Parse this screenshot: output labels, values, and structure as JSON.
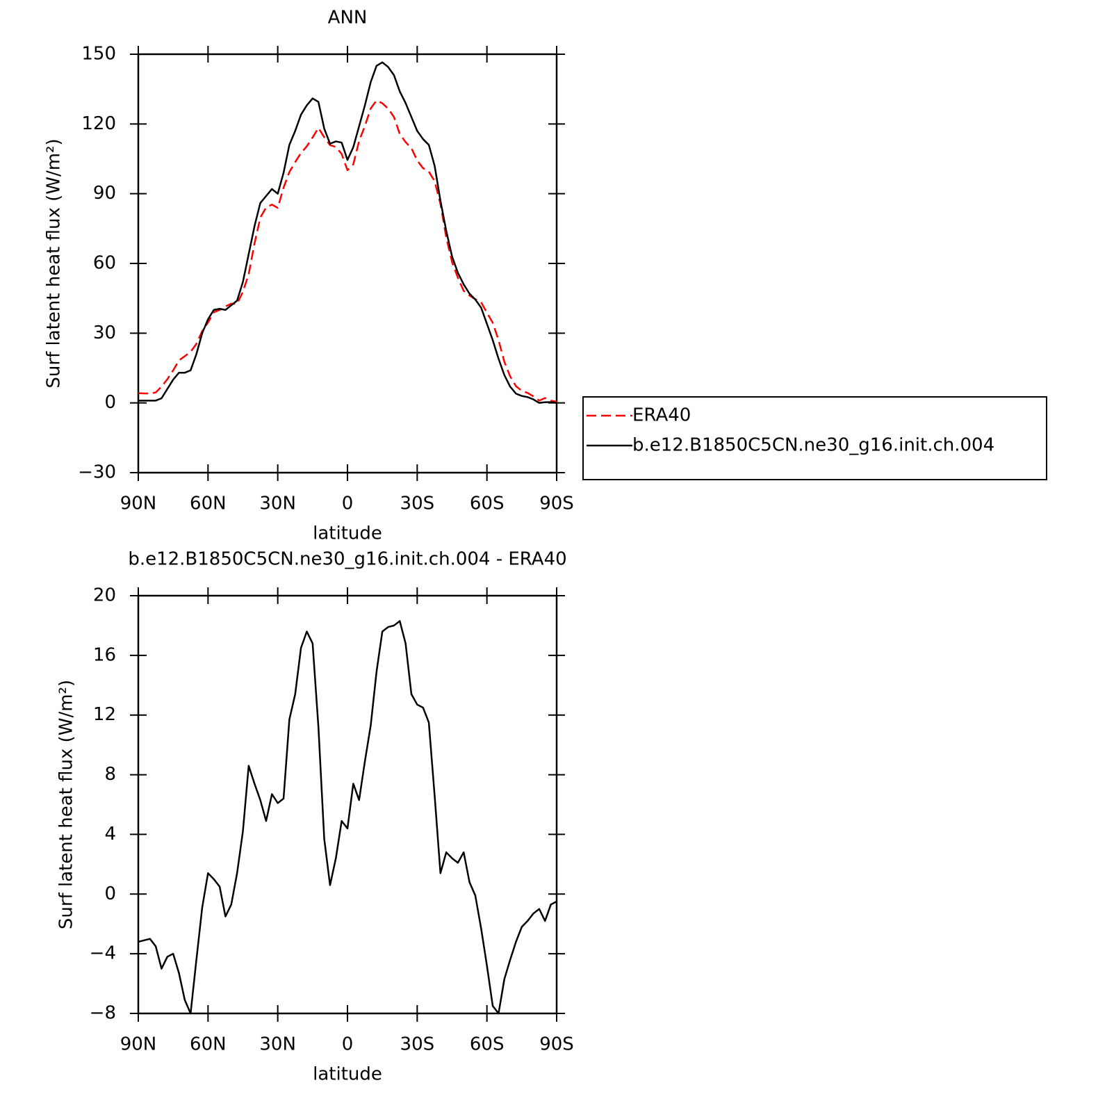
{
  "chart_data": [
    {
      "type": "line",
      "title": "ANN",
      "xlabel": "latitude",
      "ylabel": "Surf latent heat flux (W/m²)",
      "x": [
        90,
        87.5,
        85,
        82.5,
        80,
        77.5,
        75,
        72.5,
        70,
        67.5,
        65,
        62.5,
        60,
        57.5,
        55,
        52.5,
        50,
        47.5,
        45,
        42.5,
        40,
        37.5,
        35,
        32.5,
        30,
        27.5,
        25,
        22.5,
        20,
        17.5,
        15,
        12.5,
        10,
        7.5,
        5,
        2.5,
        0,
        -2.5,
        -5,
        -7.5,
        -10,
        -12.5,
        -15,
        -17.5,
        -20,
        -22.5,
        -25,
        -27.5,
        -30,
        -32.5,
        -35,
        -37.5,
        -40,
        -42.5,
        -45,
        -47.5,
        -50,
        -52.5,
        -55,
        -57.5,
        -60,
        -62.5,
        -65,
        -67.5,
        -70,
        -72.5,
        -75,
        -77.5,
        -80,
        -82.5,
        -85,
        -87.5,
        -90
      ],
      "xlim": [
        90,
        -90
      ],
      "xticks": [
        {
          "value": 90,
          "label": "90N"
        },
        {
          "value": 60,
          "label": "60N"
        },
        {
          "value": 30,
          "label": "30N"
        },
        0,
        {
          "value": -30,
          "label": "30S"
        },
        {
          "value": -60,
          "label": "60S"
        },
        {
          "value": -90,
          "label": "90S"
        }
      ],
      "ylim": [
        -30,
        150
      ],
      "yticks": [
        {
          "value": -30,
          "label": "−30"
        },
        0,
        30,
        60,
        90,
        120,
        150
      ],
      "legend": "right",
      "series": [
        {
          "name": "ERA40",
          "color": "#ff0000",
          "dashed": true,
          "values": [
            4.2,
            4.1,
            4.0,
            4.5,
            7.0,
            10.2,
            14.0,
            18.3,
            20.1,
            22.0,
            25.4,
            30.9,
            34.6,
            39.0,
            40.0,
            41.5,
            42.7,
            42.6,
            47.8,
            55.4,
            68.6,
            79.7,
            84.1,
            85.3,
            83.9,
            92.6,
            99.3,
            103.6,
            107.5,
            110.4,
            114.2,
            118.3,
            114.3,
            110.9,
            110.1,
            107.1,
            100.1,
            102.6,
            112.7,
            119.1,
            126.7,
            130.1,
            128.9,
            126.6,
            123.0,
            115.7,
            112.2,
            109.6,
            104.3,
            101.0,
            99.5,
            95.4,
            85.6,
            71.2,
            60.6,
            53.9,
            48.2,
            46.2,
            44.6,
            43.3,
            38.8,
            34.5,
            27.0,
            17.7,
            11.4,
            7.2,
            5.2,
            4.3,
            2.8,
            1.0,
            2.1,
            1.0,
            0.5
          ]
        },
        {
          "name": "b.e12.B1850C5CN.ne30_g16.init.ch.004",
          "color": "#000000",
          "dashed": false,
          "values": [
            1,
            1,
            1,
            1,
            2,
            6,
            10,
            13,
            13,
            14,
            21,
            30,
            36,
            40,
            40.5,
            40,
            42,
            44,
            52,
            64,
            76,
            86,
            89,
            92,
            90,
            99,
            111,
            117,
            124,
            128,
            131,
            129.5,
            118,
            111.5,
            112.5,
            112,
            104.5,
            110,
            119,
            128,
            138,
            145,
            146.5,
            144.5,
            141,
            134,
            129,
            123,
            117,
            113.5,
            111,
            102,
            87,
            74,
            63,
            56,
            51,
            47,
            44.5,
            41,
            34,
            27,
            19,
            12,
            7,
            4,
            3,
            2.5,
            1.5,
            0,
            0.3,
            0.3,
            0
          ]
        }
      ]
    },
    {
      "type": "line",
      "title": "b.e12.B1850C5CN.ne30_g16.init.ch.004 - ERA40",
      "xlabel": "latitude",
      "ylabel": "Surf latent heat flux (W/m²)",
      "x": [
        90,
        87.5,
        85,
        82.5,
        80,
        77.5,
        75,
        72.5,
        70,
        67.5,
        65,
        62.5,
        60,
        57.5,
        55,
        52.5,
        50,
        47.5,
        45,
        42.5,
        40,
        37.5,
        35,
        32.5,
        30,
        27.5,
        25,
        22.5,
        20,
        17.5,
        15,
        12.5,
        10,
        7.5,
        5,
        2.5,
        0,
        -2.5,
        -5,
        -7.5,
        -10,
        -12.5,
        -15,
        -17.5,
        -20,
        -22.5,
        -25,
        -27.5,
        -30,
        -32.5,
        -35,
        -37.5,
        -40,
        -42.5,
        -45,
        -47.5,
        -50,
        -52.5,
        -55,
        -57.5,
        -60,
        -62.5,
        -65,
        -67.5,
        -70,
        -72.5,
        -75,
        -77.5,
        -80,
        -82.5,
        -85,
        -87.5,
        -90
      ],
      "xlim": [
        90,
        -90
      ],
      "xticks": [
        {
          "value": 90,
          "label": "90N"
        },
        {
          "value": 60,
          "label": "60N"
        },
        {
          "value": 30,
          "label": "30N"
        },
        0,
        {
          "value": -30,
          "label": "30S"
        },
        {
          "value": -60,
          "label": "60S"
        },
        {
          "value": -90,
          "label": "90S"
        }
      ],
      "ylim": [
        -8,
        20
      ],
      "yticks": [
        {
          "value": -8,
          "label": "−8"
        },
        {
          "value": -4,
          "label": "−4"
        },
        0,
        4,
        8,
        12,
        16,
        20
      ],
      "series": [
        {
          "color": "#000000",
          "dashed": false,
          "values": [
            -3.2,
            -3.1,
            -3.0,
            -3.5,
            -5.0,
            -4.2,
            -4.0,
            -5.3,
            -7.1,
            -8.0,
            -4.4,
            -0.9,
            1.4,
            1.0,
            0.5,
            -1.5,
            -0.7,
            1.4,
            4.2,
            8.6,
            7.4,
            6.3,
            4.9,
            6.7,
            6.1,
            6.4,
            11.7,
            13.4,
            16.5,
            17.6,
            16.8,
            11.2,
            3.7,
            0.6,
            2.4,
            4.9,
            4.4,
            7.4,
            6.3,
            8.9,
            11.3,
            14.9,
            17.6,
            17.9,
            18.0,
            18.3,
            16.8,
            13.4,
            12.7,
            12.5,
            11.5,
            6.6,
            1.4,
            2.8,
            2.4,
            2.1,
            2.8,
            0.8,
            -0.1,
            -2.3,
            -4.8,
            -7.5,
            -8.0,
            -5.7,
            -4.4,
            -3.2,
            -2.2,
            -1.8,
            -1.3,
            -1.0,
            -1.8,
            -0.7,
            -0.5
          ]
        }
      ]
    }
  ]
}
